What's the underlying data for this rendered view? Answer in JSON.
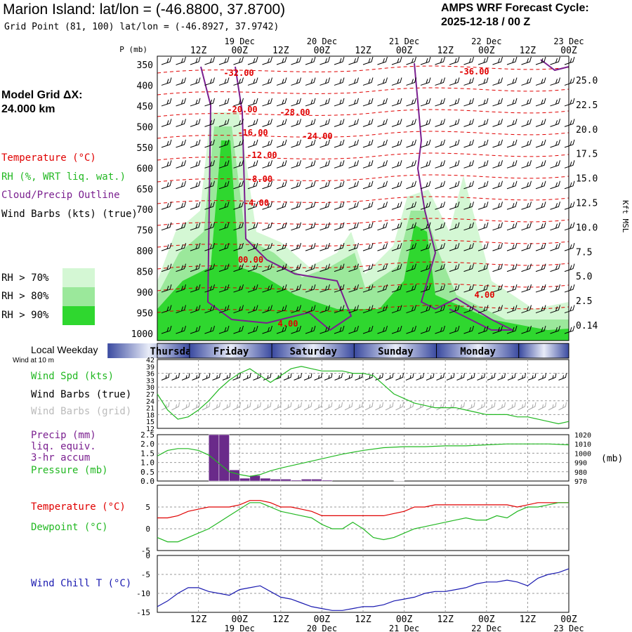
{
  "header": {
    "title": "Marion Island:  lat/lon = (-46.8800, 37.8700)",
    "gridpoint": "Grid Point (81, 100) lat/lon = (-46.8927, 37.9742)",
    "cycle_label": "AMPS WRF Forecast Cycle:",
    "cycle_value": "2025-12-18 / 00  Z"
  },
  "legend": {
    "model_grid_label": "Model Grid ΔX:",
    "model_grid_value": " 24.000 km",
    "temperature": "Temperature (°C)",
    "rh": "RH (%, WRT liq. wat.)",
    "cloud": "Cloud/Precip Outline",
    "wind": "Wind Barbs (kts) (true)",
    "rh70": "RH > 70%",
    "rh80": "RH > 80%",
    "rh90": "RH > 90%",
    "colors": {
      "temperature": "#e00000",
      "rh": "#2ad02a",
      "cloud": "#7a1f8f",
      "rh70": "#d4f7d4",
      "rh80": "#9be89b",
      "rh90": "#2fd72f"
    }
  },
  "time_axis": {
    "p_label": "P (mb)",
    "hour_labels": [
      "12Z",
      "00Z",
      "12Z",
      "00Z",
      "12Z",
      "00Z",
      "12Z",
      "00Z",
      "12Z",
      "00Z"
    ],
    "date_labels": [
      "19 Dec",
      "20 Dec",
      "21 Dec",
      "22 Dec",
      "23 Dec"
    ]
  },
  "weekday_panel": {
    "label": "Local Weekday",
    "days": [
      "Thursday",
      "Friday",
      "Saturday",
      "Sunday",
      "Monday"
    ]
  },
  "chart_data": [
    {
      "type": "heatmap",
      "name": "cross-section",
      "ylabel": "P (mb)",
      "pressure_levels": [
        350,
        400,
        450,
        500,
        550,
        600,
        650,
        700,
        750,
        800,
        850,
        900,
        950,
        1000
      ],
      "right_axis_label": "Kft MSL",
      "right_axis_ticks": [
        "25.0",
        "22.5",
        "20.0",
        "17.5",
        "15.0",
        "12.5",
        "10.0",
        "7.5",
        "5.0",
        "2.5",
        "0.14"
      ],
      "temperature_contour_labels": [
        "-32.00",
        "-36.00",
        "-20.00",
        "-28.00",
        "-16.00",
        "-24.00",
        "-12.00",
        "-8.00",
        "-4.00",
        "00.00",
        "4.00",
        "4.00"
      ],
      "forecast_hours_range": [
        0,
        120
      ]
    },
    {
      "type": "line",
      "name": "wind",
      "label_wind_title": "Wind at 10 m",
      "label_speed": "Wind Spd (kts)",
      "label_barbs_true": "Wind Barbs (true)",
      "label_barbs_grid": "Wind Barbs (grid)",
      "y_ticks": [
        "42",
        "39",
        "36",
        "33",
        "30",
        "27",
        "24",
        "21",
        "18",
        "15",
        "12"
      ],
      "ylim": [
        12,
        42
      ],
      "x_hours": [
        0,
        3,
        6,
        9,
        12,
        15,
        18,
        21,
        24,
        27,
        30,
        33,
        36,
        39,
        42,
        45,
        48,
        51,
        54,
        57,
        60,
        63,
        66,
        69,
        72,
        75,
        78,
        81,
        84,
        87,
        90,
        93,
        96,
        99,
        102,
        105,
        108,
        111,
        114,
        117,
        120
      ],
      "speed": [
        27,
        20,
        16,
        17,
        20,
        24,
        29,
        33,
        36,
        38,
        35,
        32,
        35,
        38,
        39,
        38,
        37,
        37,
        37,
        36,
        36,
        35,
        31,
        27,
        25,
        23,
        22,
        21,
        21,
        21,
        20,
        19,
        18,
        18,
        18,
        17,
        17,
        16,
        15,
        14,
        15
      ]
    },
    {
      "type": "bar",
      "name": "precip-pressure",
      "label_precip": "Precip (mm)",
      "label_liq": "liq. equiv.",
      "label_accum": "3-hr accum",
      "label_pressure": "Pressure (mb)",
      "right_axis_label": "(mb)",
      "y_ticks_left": [
        "2.5",
        "2.0",
        "1.5",
        "1.0",
        "0.5",
        "0.0"
      ],
      "y_ticks_right": [
        "1020",
        "1010",
        "1000",
        "990",
        "980",
        "970"
      ],
      "ylim": [
        0,
        2.5
      ],
      "ylim_right": [
        970,
        1020
      ],
      "precip_hours": [
        18,
        21,
        24,
        27,
        30,
        33,
        36,
        39,
        42,
        45,
        48,
        51,
        54,
        57,
        60,
        63,
        66,
        69,
        72,
        75
      ],
      "precip": [
        2.5,
        2.5,
        0.6,
        0.15,
        0.3,
        0.15,
        0.1,
        0.1,
        0.05,
        0.1,
        0.1,
        0.05,
        0.0,
        0.0,
        0.0,
        0.0,
        0.0,
        0.0,
        0.02,
        0.0
      ],
      "pressure_hours": [
        0,
        3,
        6,
        9,
        12,
        15,
        18,
        21,
        24,
        27,
        30,
        33,
        36,
        42,
        48,
        54,
        60,
        66,
        72,
        78,
        84,
        90,
        96,
        102,
        108,
        114,
        120
      ],
      "pressure": [
        997,
        1003,
        1005,
        1005,
        1003,
        998,
        989,
        980,
        977,
        975,
        977,
        981,
        984,
        989,
        994,
        999,
        1003,
        1006,
        1007,
        1007,
        1008,
        1008,
        1009,
        1010,
        1010,
        1010,
        1009
      ]
    },
    {
      "type": "line",
      "name": "temperature",
      "label_temp": "Temperature (°C)",
      "label_dew": "Dewpoint (°C)",
      "y_ticks": [
        "5",
        "0",
        "-5"
      ],
      "ylim": [
        -5,
        10
      ],
      "x_hours": [
        0,
        3,
        6,
        9,
        12,
        15,
        18,
        21,
        24,
        27,
        30,
        33,
        36,
        39,
        42,
        45,
        48,
        51,
        54,
        57,
        60,
        63,
        66,
        69,
        72,
        75,
        78,
        81,
        84,
        87,
        90,
        93,
        96,
        99,
        102,
        105,
        108,
        111,
        114,
        117,
        120
      ],
      "temperature": [
        2.5,
        2.5,
        3,
        4,
        4.5,
        5,
        5,
        5,
        5.5,
        6.5,
        6.5,
        6,
        5,
        5,
        4.5,
        4,
        3,
        3,
        3,
        3,
        3,
        3,
        3,
        3.5,
        4,
        5,
        5,
        5.5,
        5.5,
        5.5,
        5.5,
        5.5,
        5.5,
        5.5,
        5.5,
        5,
        5.5,
        6,
        6,
        6,
        6
      ],
      "dewpoint": [
        -2,
        -3,
        -3,
        -2,
        -1,
        0,
        1.5,
        3,
        4.5,
        6,
        6,
        5,
        4,
        3.5,
        3,
        2.5,
        1,
        0,
        0,
        1.5,
        0,
        -2,
        -2.5,
        -2,
        -1,
        0,
        0.5,
        1,
        1.5,
        2,
        2.5,
        2,
        2,
        3,
        2.5,
        4,
        5,
        5,
        5.5,
        6,
        6
      ]
    },
    {
      "type": "line",
      "name": "windchill",
      "label": "Wind Chill T (°C)",
      "y_ticks": [
        "0",
        "-5",
        "-10",
        "-15"
      ],
      "ylim": [
        -15,
        0
      ],
      "x_hours": [
        0,
        3,
        6,
        9,
        12,
        15,
        18,
        21,
        24,
        27,
        30,
        33,
        36,
        39,
        42,
        45,
        48,
        51,
        54,
        57,
        60,
        63,
        66,
        69,
        72,
        75,
        78,
        81,
        84,
        87,
        90,
        93,
        96,
        99,
        102,
        105,
        108,
        111,
        114,
        117,
        120
      ],
      "windchill": [
        -13.5,
        -12,
        -10,
        -8.5,
        -8.5,
        -9.5,
        -10,
        -10.5,
        -9,
        -8.5,
        -8,
        -9.5,
        -11,
        -11.5,
        -12.5,
        -13.5,
        -14,
        -14.5,
        -14.5,
        -14,
        -13.5,
        -13.5,
        -13,
        -12,
        -11.5,
        -11,
        -10,
        -9.5,
        -9.5,
        -9,
        -8.5,
        -7.5,
        -7,
        -7,
        -6.5,
        -7,
        -8,
        -6,
        -5,
        -4.5,
        -3.5
      ]
    }
  ]
}
